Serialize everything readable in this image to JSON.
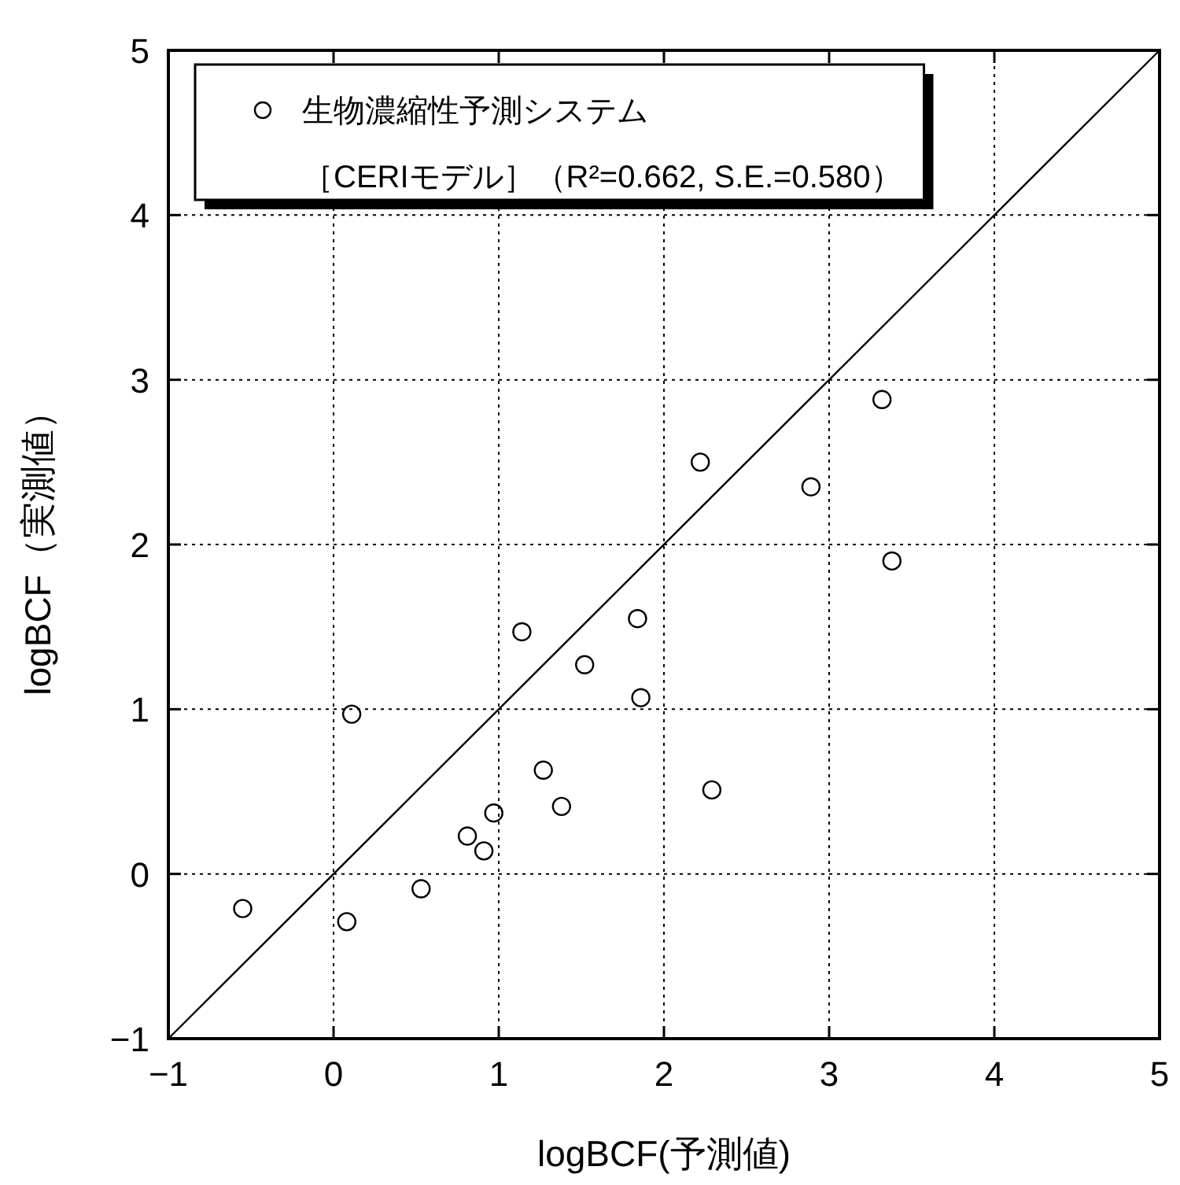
{
  "chart_data": {
    "type": "scatter",
    "xlabel": "logBCF(予測値)",
    "ylabel": "logBCF（実測値）",
    "xlim": [
      -1,
      5
    ],
    "ylim": [
      -1,
      5
    ],
    "xticks": [
      {
        "value": -1,
        "label": "−1"
      },
      0,
      1,
      2,
      3,
      4,
      5
    ],
    "yticks": [
      {
        "value": -1,
        "label": "−1"
      },
      0,
      1,
      2,
      3,
      4,
      5
    ],
    "grid": true,
    "legend": "top left",
    "annotations": [
      "［CERIモデル］（R²=0.662, S.E.=0.580）"
    ],
    "series": [
      {
        "name": "生物濃縮性予測システム",
        "color": "#000000",
        "marker": "circle",
        "x": [
          -0.55,
          0.08,
          0.11,
          0.53,
          0.81,
          0.91,
          0.97,
          1.14,
          1.27,
          1.38,
          1.52,
          1.84,
          1.86,
          2.22,
          2.29,
          2.89,
          3.32,
          3.38
        ],
        "values": [
          -0.21,
          -0.29,
          0.97,
          -0.09,
          0.23,
          0.14,
          0.37,
          1.47,
          0.63,
          0.41,
          1.27,
          1.55,
          1.07,
          2.5,
          0.51,
          2.35,
          2.88,
          1.9
        ]
      },
      {
        "type": "line",
        "color": "#000000",
        "x": [
          -1,
          5
        ],
        "values": [
          -1,
          5
        ]
      }
    ]
  }
}
